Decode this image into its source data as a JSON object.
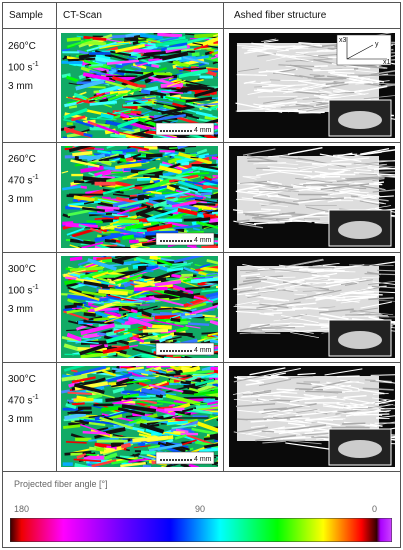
{
  "table": {
    "header": [
      "Sample",
      "CT-Scan",
      "Ashed fiber structure"
    ],
    "rows": [
      {
        "temperature": "260°C",
        "rate": "100 s",
        "rate_exponent": "-1",
        "thickness": "3 mm",
        "scale": "4 mm"
      },
      {
        "temperature": "260°C",
        "rate": "470 s",
        "rate_exponent": "-1",
        "thickness": "3 mm",
        "scale": "4 mm"
      },
      {
        "temperature": "300°C",
        "rate": "100 s",
        "rate_exponent": "-1",
        "thickness": "3 mm",
        "scale": "4 mm"
      },
      {
        "temperature": "300°C",
        "rate": "470 s",
        "rate_exponent": "-1",
        "thickness": "3 mm",
        "scale": "4 mm"
      }
    ],
    "inset_axes": [
      "x3",
      "y",
      "x1"
    ]
  },
  "legend": {
    "title": "Projected fiber angle [°]",
    "labels": [
      "180",
      "90",
      "0"
    ]
  }
}
